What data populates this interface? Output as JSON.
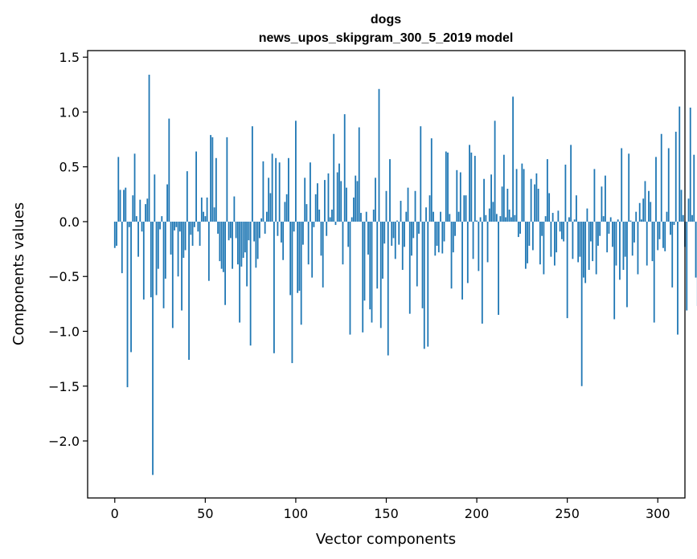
{
  "chart_data": {
    "type": "bar",
    "title": "dogs",
    "subtitle": "news_upos_skipgram_300_5_2019 model",
    "xlabel": "Vector components",
    "ylabel": "Components values",
    "xlim": [
      -15,
      315
    ],
    "ylim": [
      -2.52,
      1.56
    ],
    "xticks": [
      0,
      50,
      100,
      150,
      200,
      250,
      300
    ],
    "xtick_labels": [
      "0",
      "50",
      "100",
      "150",
      "200",
      "250",
      "300"
    ],
    "yticks": [
      1.5,
      1.0,
      0.5,
      0.0,
      -0.5,
      -1.0,
      -1.5,
      -2.0
    ],
    "ytick_labels": [
      "1.5",
      "1.0",
      "0.5",
      "0.0",
      "−0.5",
      "−1.0",
      "−1.5",
      "−2.0"
    ],
    "bar_color": "#1f77b4",
    "grid": false,
    "values": [
      -0.24,
      -0.22,
      0.59,
      0.29,
      -0.47,
      0.29,
      0.31,
      -1.51,
      -0.05,
      -1.19,
      0.24,
      0.62,
      0.05,
      -0.32,
      0.2,
      -0.09,
      -0.71,
      0.16,
      0.21,
      1.34,
      -0.69,
      -2.31,
      0.43,
      -0.67,
      -0.43,
      -0.07,
      0.05,
      -0.79,
      -0.52,
      0.34,
      0.94,
      -0.3,
      -0.97,
      -0.08,
      -0.05,
      -0.5,
      -0.09,
      -0.81,
      -0.33,
      -0.26,
      0.46,
      -1.26,
      -0.12,
      -0.22,
      -0.05,
      0.64,
      -0.09,
      -0.22,
      0.22,
      0.09,
      0.05,
      0.22,
      -0.54,
      0.79,
      0.77,
      0.13,
      0.58,
      -0.11,
      -0.36,
      -0.43,
      -0.46,
      -0.76,
      0.77,
      -0.17,
      -0.15,
      -0.43,
      0.23,
      -0.15,
      -0.39,
      -0.92,
      -0.41,
      -0.33,
      -0.28,
      -0.59,
      -0.17,
      -1.13,
      0.87,
      -0.18,
      -0.42,
      -0.34,
      -0.15,
      0.03,
      0.55,
      -0.11,
      0.09,
      0.4,
      0.26,
      0.62,
      -1.2,
      0.58,
      -0.13,
      0.54,
      -0.19,
      -0.35,
      0.18,
      0.25,
      0.58,
      -0.67,
      -1.29,
      -0.09,
      0.92,
      -0.65,
      -0.63,
      -0.94,
      -0.21,
      0.4,
      0.16,
      -0.39,
      0.54,
      -0.51,
      -0.05,
      0.25,
      0.35,
      0.11,
      -0.31,
      -0.6,
      0.38,
      -0.13,
      0.44,
      0.04,
      0.11,
      0.8,
      -0.03,
      0.45,
      0.53,
      0.37,
      -0.39,
      0.98,
      0.31,
      -0.23,
      -1.03,
      0.04,
      0.22,
      0.42,
      0.37,
      0.86,
      0.08,
      -1.01,
      -0.72,
      0.09,
      -0.3,
      -0.8,
      -0.92,
      0.11,
      0.4,
      -0.61,
      1.21,
      -0.97,
      -0.52,
      -0.2,
      0.28,
      -1.22,
      0.57,
      -0.22,
      -0.15,
      -0.34,
      0.01,
      -0.21,
      0.19,
      -0.44,
      -0.23,
      0.09,
      0.31,
      -0.84,
      -0.31,
      -0.15,
      0.28,
      -0.59,
      -0.11,
      0.87,
      -0.79,
      -1.16,
      0.13,
      -1.14,
      0.24,
      0.76,
      0.09,
      -0.31,
      -0.22,
      -0.28,
      0.09,
      -0.29,
      -0.18,
      0.64,
      0.63,
      0.07,
      -0.61,
      -0.28,
      -0.13,
      0.47,
      0.09,
      0.45,
      -0.71,
      0.24,
      0.24,
      -0.56,
      0.7,
      0.63,
      -0.34,
      0.6,
      0.01,
      -0.45,
      0.04,
      -0.93,
      0.39,
      0.06,
      -0.37,
      0.12,
      0.43,
      0.18,
      0.92,
      0.07,
      -0.85,
      0.05,
      0.32,
      0.61,
      0.04,
      0.3,
      0.11,
      0.04,
      1.14,
      0.06,
      0.48,
      -0.14,
      -0.11,
      0.53,
      0.48,
      -0.43,
      -0.38,
      -0.22,
      0.39,
      -0.26,
      0.34,
      0.44,
      0.3,
      -0.39,
      -0.13,
      -0.48,
      0.05,
      0.57,
      0.26,
      -0.32,
      0.08,
      -0.4,
      -0.28,
      0.1,
      -0.09,
      -0.16,
      -0.18,
      0.52,
      -0.88,
      0.04,
      0.7,
      -0.34,
      0.02,
      0.24,
      -0.37,
      -0.32,
      -1.5,
      -0.51,
      -0.56,
      0.12,
      -0.44,
      -0.18,
      -0.36,
      0.48,
      -0.48,
      -0.22,
      -0.13,
      0.32,
      0.05,
      0.42,
      -0.28,
      -0.11,
      0.04,
      -0.23,
      -0.89,
      -0.4,
      0.02,
      -0.53,
      0.67,
      -0.44,
      -0.32,
      -0.78,
      0.62,
      0.01,
      -0.31,
      -0.19,
      0.09,
      -0.48,
      0.17,
      0.02,
      0.21,
      0.37,
      -0.4,
      0.28,
      0.18,
      -0.36,
      -0.92,
      0.59,
      -0.26,
      -0.16,
      0.8,
      -0.24,
      -0.27,
      0.09,
      0.67,
      -0.12,
      -0.6,
      -0.03,
      0.82,
      -1.03,
      1.05,
      0.29,
      0.06,
      -0.23,
      -0.81,
      0.21,
      1.04,
      0.06,
      0.61,
      -0.51,
      -0.77
    ]
  }
}
